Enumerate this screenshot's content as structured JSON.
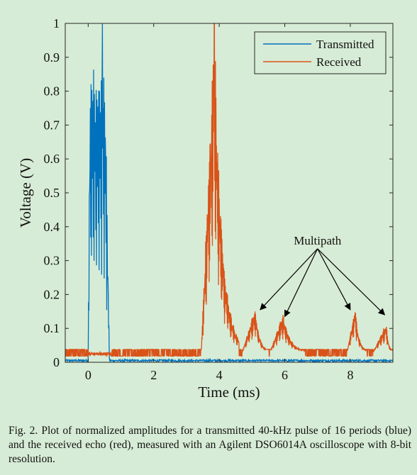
{
  "chart_data": {
    "type": "line",
    "xlabel": "Time (ms)",
    "ylabel": "Voltage (V)",
    "xlim": [
      -0.7,
      9.3
    ],
    "ylim": [
      0,
      1
    ],
    "xticks": [
      0,
      2,
      4,
      6,
      8
    ],
    "xtick_labels": [
      "0",
      "2",
      "4",
      "6",
      "8"
    ],
    "yticks": [
      0,
      0.1,
      0.2,
      0.3,
      0.4,
      0.5,
      0.6,
      0.7,
      0.8,
      0.9,
      1
    ],
    "ytick_labels": [
      "0",
      "0.1",
      "0.2",
      "0.3",
      "0.4",
      "0.5",
      "0.6",
      "0.7",
      "0.8",
      "0.9",
      "1"
    ],
    "grid": false,
    "legend_position": "top-right",
    "series": [
      {
        "name": "Transmitted",
        "color": "#0072BD",
        "baseline": 0.005,
        "pulse_start": 0.0,
        "pulse_end": 0.65,
        "peak_time": 0.43,
        "peak_value": 1.0,
        "typical_amplitude": 0.86
      },
      {
        "name": "Received",
        "color": "#D95319",
        "baseline": 0.03,
        "bursts": [
          {
            "start": 3.45,
            "end": 4.6,
            "peak_time": 3.85,
            "peak_value": 1.0
          },
          {
            "start": 4.7,
            "end": 5.5,
            "peak_time": 5.1,
            "peak_value": 0.14
          },
          {
            "start": 5.55,
            "end": 6.6,
            "peak_time": 5.95,
            "peak_value": 0.12
          },
          {
            "start": 7.9,
            "end": 8.5,
            "peak_time": 8.15,
            "peak_value": 0.14
          },
          {
            "start": 8.7,
            "end": 9.3,
            "peak_time": 9.1,
            "peak_value": 0.09
          }
        ]
      }
    ],
    "annotation": {
      "text": "Multipath",
      "text_at": [
        7.0,
        0.36
      ],
      "arrow_origin": [
        7.0,
        0.335
      ],
      "arrow_targets": [
        [
          5.25,
          0.155
        ],
        [
          6.0,
          0.135
        ],
        [
          8.0,
          0.155
        ],
        [
          9.05,
          0.14
        ]
      ]
    }
  },
  "caption": {
    "text": "Fig. 2.   Plot of normalized amplitudes for a transmitted 40-kHz pulse of 16 periods (blue) and the received echo (red), measured with an Agilent DSO6014A oscilloscope with 8-bit resolution."
  }
}
